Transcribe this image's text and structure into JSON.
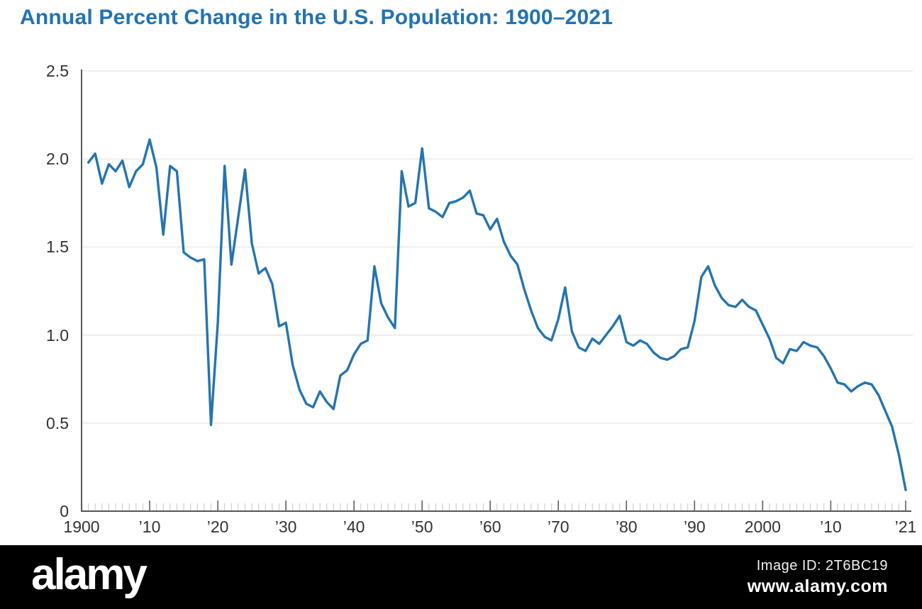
{
  "title": "Annual Percent Change in the U.S. Population: 1900–2021",
  "colors": {
    "title_blue": "#2173b3",
    "line_blue": "#2574af",
    "axis_gray": "#59595b",
    "grid_gray": "#e8e8e8",
    "tick_minor_gray": "#c6c6c8",
    "tick_major_gray": "#606062",
    "tick_label_gray": "#323234",
    "footer_bg": "#000000",
    "footer_text": "#ffffff"
  },
  "chart_data": {
    "type": "line",
    "title": "Annual Percent Change in the U.S. Population: 1900–2021",
    "series_name": "Annual percent change in U.S. population (%)",
    "x_start": 1901,
    "x_end": 2021,
    "values": [
      1.98,
      2.03,
      1.86,
      1.97,
      1.93,
      1.99,
      1.84,
      1.93,
      1.97,
      2.11,
      1.95,
      1.57,
      1.96,
      1.93,
      1.47,
      1.44,
      1.42,
      1.43,
      0.49,
      1.07,
      1.96,
      1.4,
      1.67,
      1.94,
      1.52,
      1.35,
      1.38,
      1.29,
      1.05,
      1.07,
      0.83,
      0.69,
      0.61,
      0.59,
      0.68,
      0.62,
      0.58,
      0.77,
      0.8,
      0.89,
      0.95,
      0.97,
      1.39,
      1.18,
      1.1,
      1.04,
      1.93,
      1.73,
      1.75,
      2.06,
      1.72,
      1.7,
      1.67,
      1.75,
      1.76,
      1.78,
      1.82,
      1.69,
      1.68,
      1.6,
      1.66,
      1.53,
      1.45,
      1.4,
      1.26,
      1.14,
      1.04,
      0.99,
      0.97,
      1.09,
      1.27,
      1.02,
      0.93,
      0.91,
      0.98,
      0.95,
      1.0,
      1.05,
      1.11,
      0.96,
      0.94,
      0.97,
      0.95,
      0.9,
      0.87,
      0.86,
      0.88,
      0.92,
      0.93,
      1.08,
      1.33,
      1.39,
      1.28,
      1.21,
      1.17,
      1.16,
      1.2,
      1.16,
      1.14,
      1.06,
      0.98,
      0.87,
      0.84,
      0.92,
      0.91,
      0.96,
      0.94,
      0.93,
      0.88,
      0.81,
      0.73,
      0.72,
      0.68,
      0.71,
      0.73,
      0.72,
      0.66,
      0.57,
      0.48,
      0.32,
      0.12
    ],
    "xlim": [
      1900,
      2021
    ],
    "ylim": [
      0,
      2.5
    ],
    "grid": "horizontal",
    "legend": "none",
    "y_ticks": [
      {
        "value": 2.5,
        "label": "2.5"
      },
      {
        "value": 2.0,
        "label": "2.0"
      },
      {
        "value": 1.5,
        "label": "1.5"
      },
      {
        "value": 1.0,
        "label": "1.0"
      },
      {
        "value": 0.5,
        "label": "0.5"
      },
      {
        "value": 0.0,
        "label": "0"
      }
    ],
    "x_ticks": [
      {
        "year": 1900,
        "label": "1900"
      },
      {
        "year": 1910,
        "label": "’10"
      },
      {
        "year": 1920,
        "label": "’20"
      },
      {
        "year": 1930,
        "label": "’30"
      },
      {
        "year": 1940,
        "label": "’40"
      },
      {
        "year": 1950,
        "label": "’50"
      },
      {
        "year": 1960,
        "label": "’60"
      },
      {
        "year": 1970,
        "label": "’70"
      },
      {
        "year": 1980,
        "label": "’80"
      },
      {
        "year": 1990,
        "label": "’90"
      },
      {
        "year": 2000,
        "label": "2000"
      },
      {
        "year": 2010,
        "label": "’10"
      },
      {
        "year": 2021,
        "label": "’21"
      }
    ]
  },
  "watermark": {
    "logo": "alamy",
    "image_id_label": "Image ID: 2T6BC19",
    "url": "www.alamy.com"
  }
}
